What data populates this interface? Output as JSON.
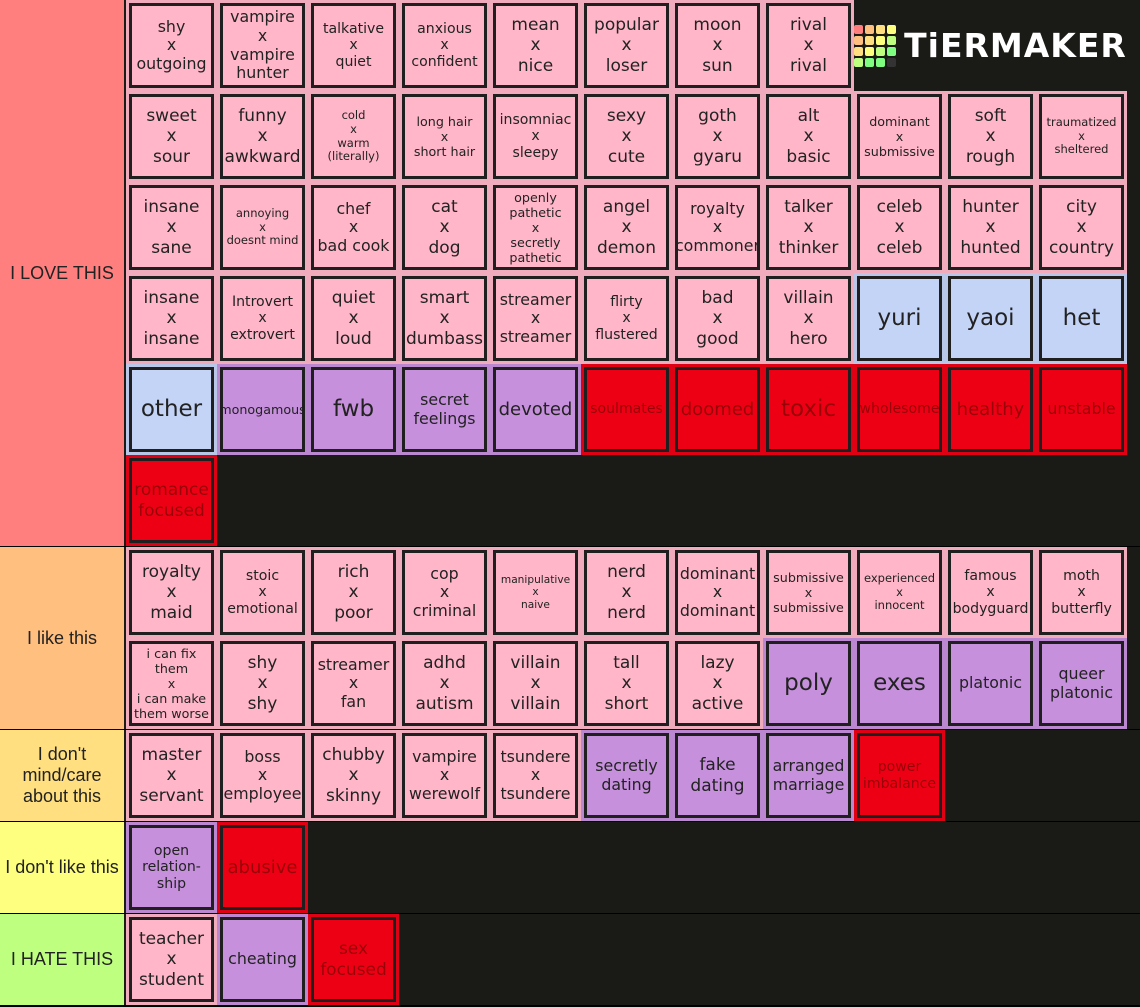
{
  "logo": "TiERMAKER",
  "tiers": [
    {
      "label": "I LOVE THIS",
      "color": "#ff7f7f",
      "items": [
        {
          "text": "shy\nx\noutgoing",
          "color": "#ffb6c9"
        },
        {
          "text": "vampire\nx\nvampire\nhunter",
          "color": "#ffb6c9"
        },
        {
          "text": "talkative\nx\nquiet",
          "color": "#ffb6c9"
        },
        {
          "text": "anxious\nx\nconfident",
          "color": "#ffb6c9"
        },
        {
          "text": "mean\nx\nnice",
          "color": "#ffb6c9"
        },
        {
          "text": "popular\nx\nloser",
          "color": "#ffb6c9"
        },
        {
          "text": "moon\nx\nsun",
          "color": "#ffb6c9"
        },
        {
          "text": "rival\nx\nrival",
          "color": "#ffb6c9"
        },
        {
          "text": "sweet\nx\nsour",
          "color": "#ffb6c9"
        },
        {
          "text": "funny\nx\nawkward",
          "color": "#ffb6c9"
        },
        {
          "text": "cold\nx\nwarm\n(literally)",
          "color": "#ffb6c9"
        },
        {
          "text": "long hair\nx\nshort hair",
          "color": "#ffb6c9"
        },
        {
          "text": "insomniac\nx\nsleepy",
          "color": "#ffb6c9"
        },
        {
          "text": "sexy\nx\ncute",
          "color": "#ffb6c9"
        },
        {
          "text": "goth\nx\ngyaru",
          "color": "#ffb6c9"
        },
        {
          "text": "alt\nx\nbasic",
          "color": "#ffb6c9"
        },
        {
          "text": "dominant\nx\nsubmissive",
          "color": "#ffb6c9"
        },
        {
          "text": "soft\nx\nrough",
          "color": "#ffb6c9"
        },
        {
          "text": "traumatized\nx\nsheltered",
          "color": "#ffb6c9"
        },
        {
          "text": "insane\nx\nsane",
          "color": "#ffb6c9"
        },
        {
          "text": "annoying\nx\ndoesnt mind",
          "color": "#ffb6c9"
        },
        {
          "text": "chef\nx\nbad cook",
          "color": "#ffb6c9"
        },
        {
          "text": "cat\nx\ndog",
          "color": "#ffb6c9"
        },
        {
          "text": "openly\npathetic\nx\nsecretly\npathetic",
          "color": "#ffb6c9"
        },
        {
          "text": "angel\nx\ndemon",
          "color": "#ffb6c9"
        },
        {
          "text": "royalty\nx\ncommoner",
          "color": "#ffb6c9"
        },
        {
          "text": "talker\nx\nthinker",
          "color": "#ffb6c9"
        },
        {
          "text": "celeb\nx\nceleb",
          "color": "#ffb6c9"
        },
        {
          "text": "hunter\nx\nhunted",
          "color": "#ffb6c9"
        },
        {
          "text": "city\nx\ncountry",
          "color": "#ffb6c9"
        },
        {
          "text": "insane\nx\ninsane",
          "color": "#ffb6c9"
        },
        {
          "text": "Introvert\nx\nextrovert",
          "color": "#ffb6c9"
        },
        {
          "text": "quiet\nx\nloud",
          "color": "#ffb6c9"
        },
        {
          "text": "smart\nx\ndumbass",
          "color": "#ffb6c9"
        },
        {
          "text": "streamer\nx\nstreamer",
          "color": "#ffb6c9"
        },
        {
          "text": "flirty\nx\nflustered",
          "color": "#ffb6c9"
        },
        {
          "text": "bad\nx\ngood",
          "color": "#ffb6c9"
        },
        {
          "text": "villain\nx\nhero",
          "color": "#ffb6c9"
        },
        {
          "text": "yuri",
          "color": "#c4d4f6"
        },
        {
          "text": "yaoi",
          "color": "#c4d4f6"
        },
        {
          "text": "het",
          "color": "#c4d4f6"
        },
        {
          "text": "other",
          "color": "#c4d4f6"
        },
        {
          "text": "monogamous",
          "color": "#c690dd"
        },
        {
          "text": "fwb",
          "color": "#c690dd"
        },
        {
          "text": "secret\nfeelings",
          "color": "#c690dd"
        },
        {
          "text": "devoted",
          "color": "#c690dd"
        },
        {
          "text": "soulmates",
          "color": "#ee0014"
        },
        {
          "text": "doomed",
          "color": "#ee0014"
        },
        {
          "text": "toxic",
          "color": "#ee0014"
        },
        {
          "text": "wholesome",
          "color": "#ee0014"
        },
        {
          "text": "healthy",
          "color": "#ee0014"
        },
        {
          "text": "unstable",
          "color": "#ee0014"
        },
        {
          "text": "romance\nfocused",
          "color": "#ee0014"
        }
      ]
    },
    {
      "label": "I like this",
      "color": "#ffbf7f",
      "items": [
        {
          "text": "royalty\nx\nmaid",
          "color": "#ffb6c9"
        },
        {
          "text": "stoic\nx\nemotional",
          "color": "#ffb6c9"
        },
        {
          "text": "rich\nx\npoor",
          "color": "#ffb6c9"
        },
        {
          "text": "cop\nx\ncriminal",
          "color": "#ffb6c9"
        },
        {
          "text": "manipulative\nx\nnaive",
          "color": "#ffb6c9"
        },
        {
          "text": "nerd\nx\nnerd",
          "color": "#ffb6c9"
        },
        {
          "text": "dominant\nx\ndominant",
          "color": "#ffb6c9"
        },
        {
          "text": "submissive\nx\nsubmissive",
          "color": "#ffb6c9"
        },
        {
          "text": "experienced\nx\ninnocent",
          "color": "#ffb6c9"
        },
        {
          "text": "famous\nx\nbodyguard",
          "color": "#ffb6c9"
        },
        {
          "text": "moth\nx\nbutterfly",
          "color": "#ffb6c9"
        },
        {
          "text": "i can fix\nthem\nx\ni can make\nthem worse",
          "color": "#ffb6c9"
        },
        {
          "text": "shy\nx\nshy",
          "color": "#ffb6c9"
        },
        {
          "text": "streamer\nx\nfan",
          "color": "#ffb6c9"
        },
        {
          "text": "adhd\nx\nautism",
          "color": "#ffb6c9"
        },
        {
          "text": "villain\nx\nvillain",
          "color": "#ffb6c9"
        },
        {
          "text": "tall\nx\nshort",
          "color": "#ffb6c9"
        },
        {
          "text": "lazy\nx\nactive",
          "color": "#ffb6c9"
        },
        {
          "text": "poly",
          "color": "#c690dd"
        },
        {
          "text": "exes",
          "color": "#c690dd"
        },
        {
          "text": "platonic",
          "color": "#c690dd"
        },
        {
          "text": "queer\nplatonic",
          "color": "#c690dd"
        }
      ]
    },
    {
      "label": "I don't mind/care about this",
      "color": "#ffdf7f",
      "items": [
        {
          "text": "master\nx\nservant",
          "color": "#ffb6c9"
        },
        {
          "text": "boss\nx\nemployee",
          "color": "#ffb6c9"
        },
        {
          "text": "chubby\nx\nskinny",
          "color": "#ffb6c9"
        },
        {
          "text": "vampire\nx\nwerewolf",
          "color": "#ffb6c9"
        },
        {
          "text": "tsundere\nx\ntsundere",
          "color": "#ffb6c9"
        },
        {
          "text": "secretly\ndating",
          "color": "#c690dd"
        },
        {
          "text": "fake\ndating",
          "color": "#c690dd"
        },
        {
          "text": "arranged\nmarriage",
          "color": "#c690dd"
        },
        {
          "text": "power\nimbalance",
          "color": "#ee0014"
        }
      ]
    },
    {
      "label": "I don't like this",
      "color": "#ffff7f",
      "items": [
        {
          "text": "open\nrelation-\nship",
          "color": "#c690dd"
        },
        {
          "text": "abusive",
          "color": "#ee0014"
        }
      ]
    },
    {
      "label": "I HATE THIS",
      "color": "#bfff7f",
      "items": [
        {
          "text": "teacher\nx\nstudent",
          "color": "#ffb6c9"
        },
        {
          "text": "cheating",
          "color": "#c690dd"
        },
        {
          "text": "sex\nfocused",
          "color": "#ee0014"
        }
      ]
    }
  ]
}
